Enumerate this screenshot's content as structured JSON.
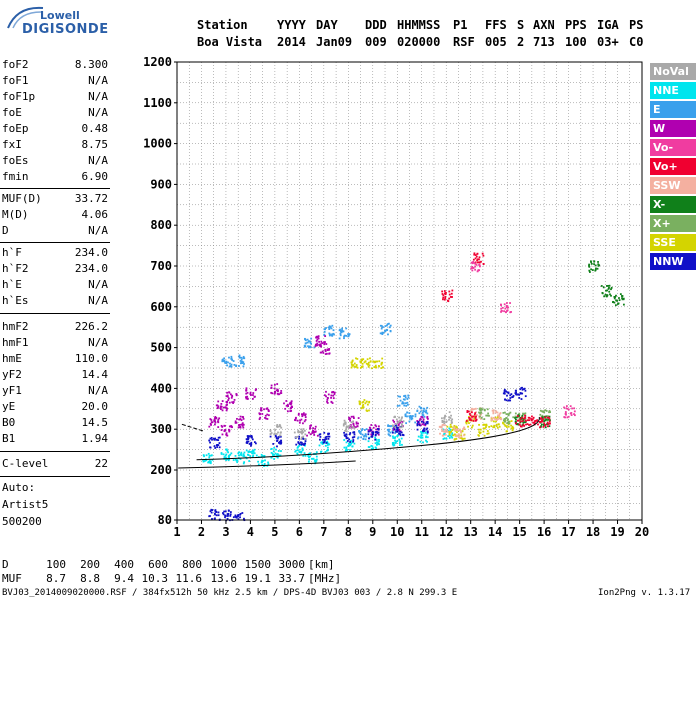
{
  "logo": {
    "line1": "Lowell",
    "line2": "DIGISONDE"
  },
  "header": {
    "labels": [
      "Station",
      "YYYY",
      "DAY",
      "DDD",
      "HHMMSS",
      "P1",
      "FFS",
      "S",
      "AXN",
      "PPS",
      "IGA",
      "PS"
    ],
    "values": [
      "Boa Vista",
      "2014",
      "Jan09",
      "009",
      "020000",
      "RSF",
      "005",
      "2",
      "713",
      "100",
      "03+",
      "C0"
    ]
  },
  "params": [
    {
      "name": "foF2",
      "value": "8.300"
    },
    {
      "name": "foF1",
      "value": "N/A"
    },
    {
      "name": "foF1p",
      "value": "N/A"
    },
    {
      "name": "foE",
      "value": "N/A"
    },
    {
      "name": "foEp",
      "value": "0.48"
    },
    {
      "name": "fxI",
      "value": "8.75"
    },
    {
      "name": "foEs",
      "value": "N/A"
    },
    {
      "name": "fmin",
      "value": "6.90"
    },
    {
      "name": "MUF(D)",
      "value": "33.72"
    },
    {
      "name": "M(D)",
      "value": "4.06"
    },
    {
      "name": "D",
      "value": "N/A"
    },
    {
      "name": "h`F",
      "value": "234.0"
    },
    {
      "name": "h`F2",
      "value": "234.0"
    },
    {
      "name": "h`E",
      "value": "N/A"
    },
    {
      "name": "h`Es",
      "value": "N/A"
    },
    {
      "name": "hmF2",
      "value": "226.2"
    },
    {
      "name": "hmF1",
      "value": "N/A"
    },
    {
      "name": "hmE",
      "value": "110.0"
    },
    {
      "name": "yF2",
      "value": "14.4"
    },
    {
      "name": "yF1",
      "value": "N/A"
    },
    {
      "name": "yE",
      "value": "20.0"
    },
    {
      "name": "B0",
      "value": "14.5"
    },
    {
      "name": "B1",
      "value": "1.94"
    },
    {
      "name": "C-level",
      "value": "22"
    }
  ],
  "auto": {
    "line1": "Auto:",
    "line2": "Artist5",
    "line3": "500200"
  },
  "legend": [
    {
      "name": "NoVal",
      "color": "#a9a9a9"
    },
    {
      "name": "NNE",
      "color": "#00e5ee"
    },
    {
      "name": "E",
      "color": "#3aa0ec"
    },
    {
      "name": "W",
      "color": "#b000b0"
    },
    {
      "name": "Vo-",
      "color": "#f03ca0"
    },
    {
      "name": "Vo+",
      "color": "#f00030"
    },
    {
      "name": "SSW",
      "color": "#f4b0a0"
    },
    {
      "name": "X-",
      "color": "#10801a"
    },
    {
      "name": "X+",
      "color": "#7ab060"
    },
    {
      "name": "SSE",
      "color": "#d4d400"
    },
    {
      "name": "NNW",
      "color": "#1010c8"
    }
  ],
  "footer": {
    "row1_label": "D",
    "row1_values": [
      "100",
      "200",
      "400",
      "600",
      "800",
      "1000",
      "1500",
      "3000"
    ],
    "row1_unit": "[km]",
    "row2_label": "MUF",
    "row2_values": [
      "8.7",
      "8.8",
      "9.4",
      "10.3",
      "11.6",
      "13.6",
      "19.1",
      "33.7"
    ],
    "row2_unit": "[MHz]",
    "file_info": "BVJ03_2014009020000.RSF / 384fx512h 50 kHz 2.5 km / DPS-4D BVJ03 003 / 2.8 N 299.3 E",
    "version": "Ion2Png v. 1.3.17"
  },
  "chart_data": {
    "type": "scatter",
    "x": {
      "min": 1,
      "max": 20,
      "ticks": [
        1,
        2,
        3,
        4,
        5,
        6,
        7,
        8,
        9,
        10,
        11,
        12,
        13,
        14,
        15,
        16,
        17,
        18,
        19,
        20
      ]
    },
    "y": {
      "min": 80,
      "max": 1200,
      "ticks": [
        80,
        200,
        300,
        400,
        500,
        600,
        700,
        800,
        900,
        1000,
        1100,
        1200
      ]
    },
    "grid": true,
    "regions": [
      {
        "label": "NNE",
        "color": "#00e5ee",
        "points": [
          [
            2.2,
            228
          ],
          [
            3,
            240
          ],
          [
            4,
            238
          ],
          [
            5,
            243
          ],
          [
            6,
            250
          ],
          [
            7,
            258
          ],
          [
            8,
            262
          ],
          [
            9,
            268
          ],
          [
            10,
            275
          ],
          [
            11,
            283
          ],
          [
            12,
            292
          ],
          [
            4.5,
            226
          ],
          [
            6.5,
            232
          ],
          [
            3.5,
            232
          ]
        ]
      },
      {
        "label": "E",
        "color": "#3aa0ec",
        "points": [
          [
            3,
            468
          ],
          [
            3.5,
            470
          ],
          [
            6.4,
            512
          ],
          [
            7.2,
            545
          ],
          [
            7.8,
            538
          ],
          [
            9.5,
            548
          ],
          [
            10.2,
            372
          ],
          [
            10.5,
            330
          ],
          [
            11,
            345
          ],
          [
            9.8,
            300
          ],
          [
            8.5,
            290
          ]
        ]
      },
      {
        "label": "W",
        "color": "#b000b0",
        "points": [
          [
            2.8,
            360
          ],
          [
            3.2,
            380
          ],
          [
            3.5,
            320
          ],
          [
            4,
            390
          ],
          [
            4.5,
            340
          ],
          [
            5,
            400
          ],
          [
            5.5,
            360
          ],
          [
            6,
            330
          ],
          [
            6.5,
            300
          ],
          [
            6.8,
            520
          ],
          [
            7,
            500
          ],
          [
            7.2,
            380
          ],
          [
            8.2,
            320
          ],
          [
            9,
            300
          ],
          [
            10,
            310
          ],
          [
            11,
            320
          ],
          [
            2.5,
            320
          ],
          [
            3,
            300
          ]
        ]
      },
      {
        "label": "SSE",
        "color": "#d4d400",
        "points": [
          [
            8.3,
            462
          ],
          [
            8.7,
            463
          ],
          [
            9.2,
            465
          ],
          [
            8.6,
            360
          ],
          [
            13,
            320
          ],
          [
            13.5,
            300
          ],
          [
            14,
            318
          ],
          [
            14.5,
            310
          ],
          [
            12.5,
            290
          ],
          [
            12.2,
            300
          ]
        ]
      },
      {
        "label": "NNW",
        "color": "#1010c8",
        "points": [
          [
            2.5,
            268
          ],
          [
            4,
            272
          ],
          [
            5,
            274
          ],
          [
            6,
            276
          ],
          [
            7,
            280
          ],
          [
            8,
            282
          ],
          [
            9,
            290
          ],
          [
            10,
            300
          ],
          [
            11,
            308
          ],
          [
            2.5,
            93
          ],
          [
            3,
            92
          ],
          [
            3.5,
            91
          ],
          [
            15,
            390
          ],
          [
            14.5,
            385
          ]
        ]
      },
      {
        "label": "SSW",
        "color": "#f4b0a0",
        "points": [
          [
            11.8,
            300
          ],
          [
            12.5,
            295
          ],
          [
            13.2,
            340
          ],
          [
            14,
            335
          ]
        ]
      },
      {
        "label": "X+",
        "color": "#7ab060",
        "points": [
          [
            13.5,
            340
          ],
          [
            14.5,
            330
          ],
          [
            15,
            330
          ],
          [
            16,
            335
          ]
        ]
      },
      {
        "label": "X-",
        "color": "#10801a",
        "points": [
          [
            15,
            325
          ],
          [
            16,
            320
          ],
          [
            18.5,
            640
          ],
          [
            19,
            620
          ],
          [
            18,
            700
          ]
        ]
      },
      {
        "label": "Vo+",
        "color": "#f00030",
        "points": [
          [
            13,
            335
          ],
          [
            15,
            322
          ],
          [
            15.5,
            320
          ],
          [
            16,
            318
          ],
          [
            13.3,
            720
          ],
          [
            12,
            630
          ]
        ]
      },
      {
        "label": "Vo-",
        "color": "#f03ca0",
        "points": [
          [
            13.2,
            700
          ],
          [
            14.4,
            600
          ],
          [
            17,
            345
          ]
        ]
      },
      {
        "label": "NoVal",
        "color": "#a9a9a9",
        "points": [
          [
            5,
            300
          ],
          [
            6,
            290
          ],
          [
            8,
            310
          ],
          [
            10,
            320
          ],
          [
            12,
            330
          ]
        ]
      }
    ]
  }
}
